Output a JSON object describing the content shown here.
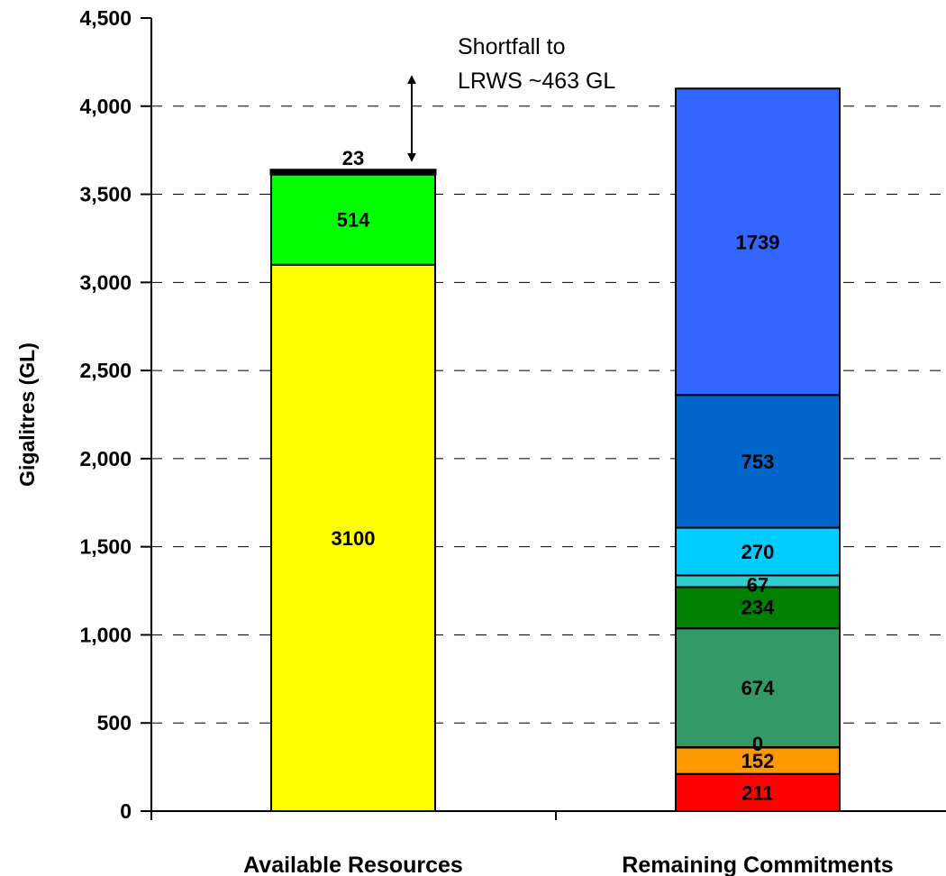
{
  "chart_data": {
    "type": "bar",
    "stacked": true,
    "ylabel": "Gigalitres (GL)",
    "ylim": [
      0,
      4500
    ],
    "yticks": [
      0,
      500,
      1000,
      1500,
      2000,
      2500,
      3000,
      3500,
      4000,
      4500
    ],
    "ytick_labels": [
      "0",
      "500",
      "1,000",
      "1,500",
      "2,000",
      "2,500",
      "3,000",
      "3,500",
      "4,000",
      "4,500"
    ],
    "grid": "horizontal dashed",
    "categories": [
      "Available Resources",
      "Remaining Commitments"
    ],
    "bars": [
      {
        "category": "Available Resources",
        "segments": [
          {
            "value": 3100,
            "label": "3100",
            "color": "#ffff00"
          },
          {
            "value": 514,
            "label": "514",
            "color": "#00ff00"
          },
          {
            "value": 23,
            "label": "23",
            "color": "#000000"
          }
        ]
      },
      {
        "category": "Remaining Commitments",
        "segments": [
          {
            "value": 211,
            "label": "211",
            "color": "#ff0000"
          },
          {
            "value": 152,
            "label": "152",
            "color": "#ff9900"
          },
          {
            "value": 0,
            "label": "0",
            "color": "#ffcc00"
          },
          {
            "value": 674,
            "label": "674",
            "color": "#339966"
          },
          {
            "value": 234,
            "label": "234",
            "color": "#008000"
          },
          {
            "value": 67,
            "label": "67",
            "color": "#33cccc"
          },
          {
            "value": 270,
            "label": "270",
            "color": "#00ccff"
          },
          {
            "value": 753,
            "label": "753",
            "color": "#0066cc"
          },
          {
            "value": 1739,
            "label": "1739",
            "color": "#3366ff"
          }
        ]
      }
    ],
    "annotation": {
      "lines": [
        "Shortfall to",
        "LRWS ~463 GL"
      ],
      "arrow_from": 3637,
      "arrow_to": 4100
    }
  }
}
